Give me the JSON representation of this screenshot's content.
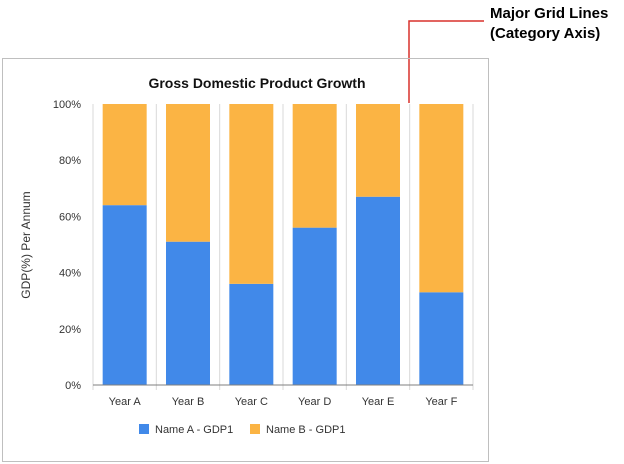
{
  "callout": {
    "line1": "Major Grid Lines",
    "line2": "(Category Axis)"
  },
  "colors": {
    "series_a": "#4189E9",
    "series_b": "#FBB444",
    "gridline": "#D9D9D9",
    "callout_line": "#D9302C"
  },
  "chart_data": {
    "type": "bar",
    "stacked": "100%",
    "title": "Gross Domestic Product Growth",
    "xlabel": "",
    "ylabel": "GDP(%) Per Annum",
    "categories": [
      "Year A",
      "Year B",
      "Year C",
      "Year D",
      "Year E",
      "Year F"
    ],
    "series": [
      {
        "name": "Name A - GDP1",
        "values": [
          64,
          51,
          36,
          56,
          67,
          33
        ]
      },
      {
        "name": "Name B - GDP1",
        "values": [
          36,
          49,
          64,
          44,
          33,
          67
        ]
      }
    ],
    "ylim": [
      0,
      100
    ],
    "yticks": [
      "0%",
      "20%",
      "40%",
      "60%",
      "80%",
      "100%"
    ],
    "grid": {
      "category_axis_major": true
    },
    "legend_position": "bottom"
  }
}
